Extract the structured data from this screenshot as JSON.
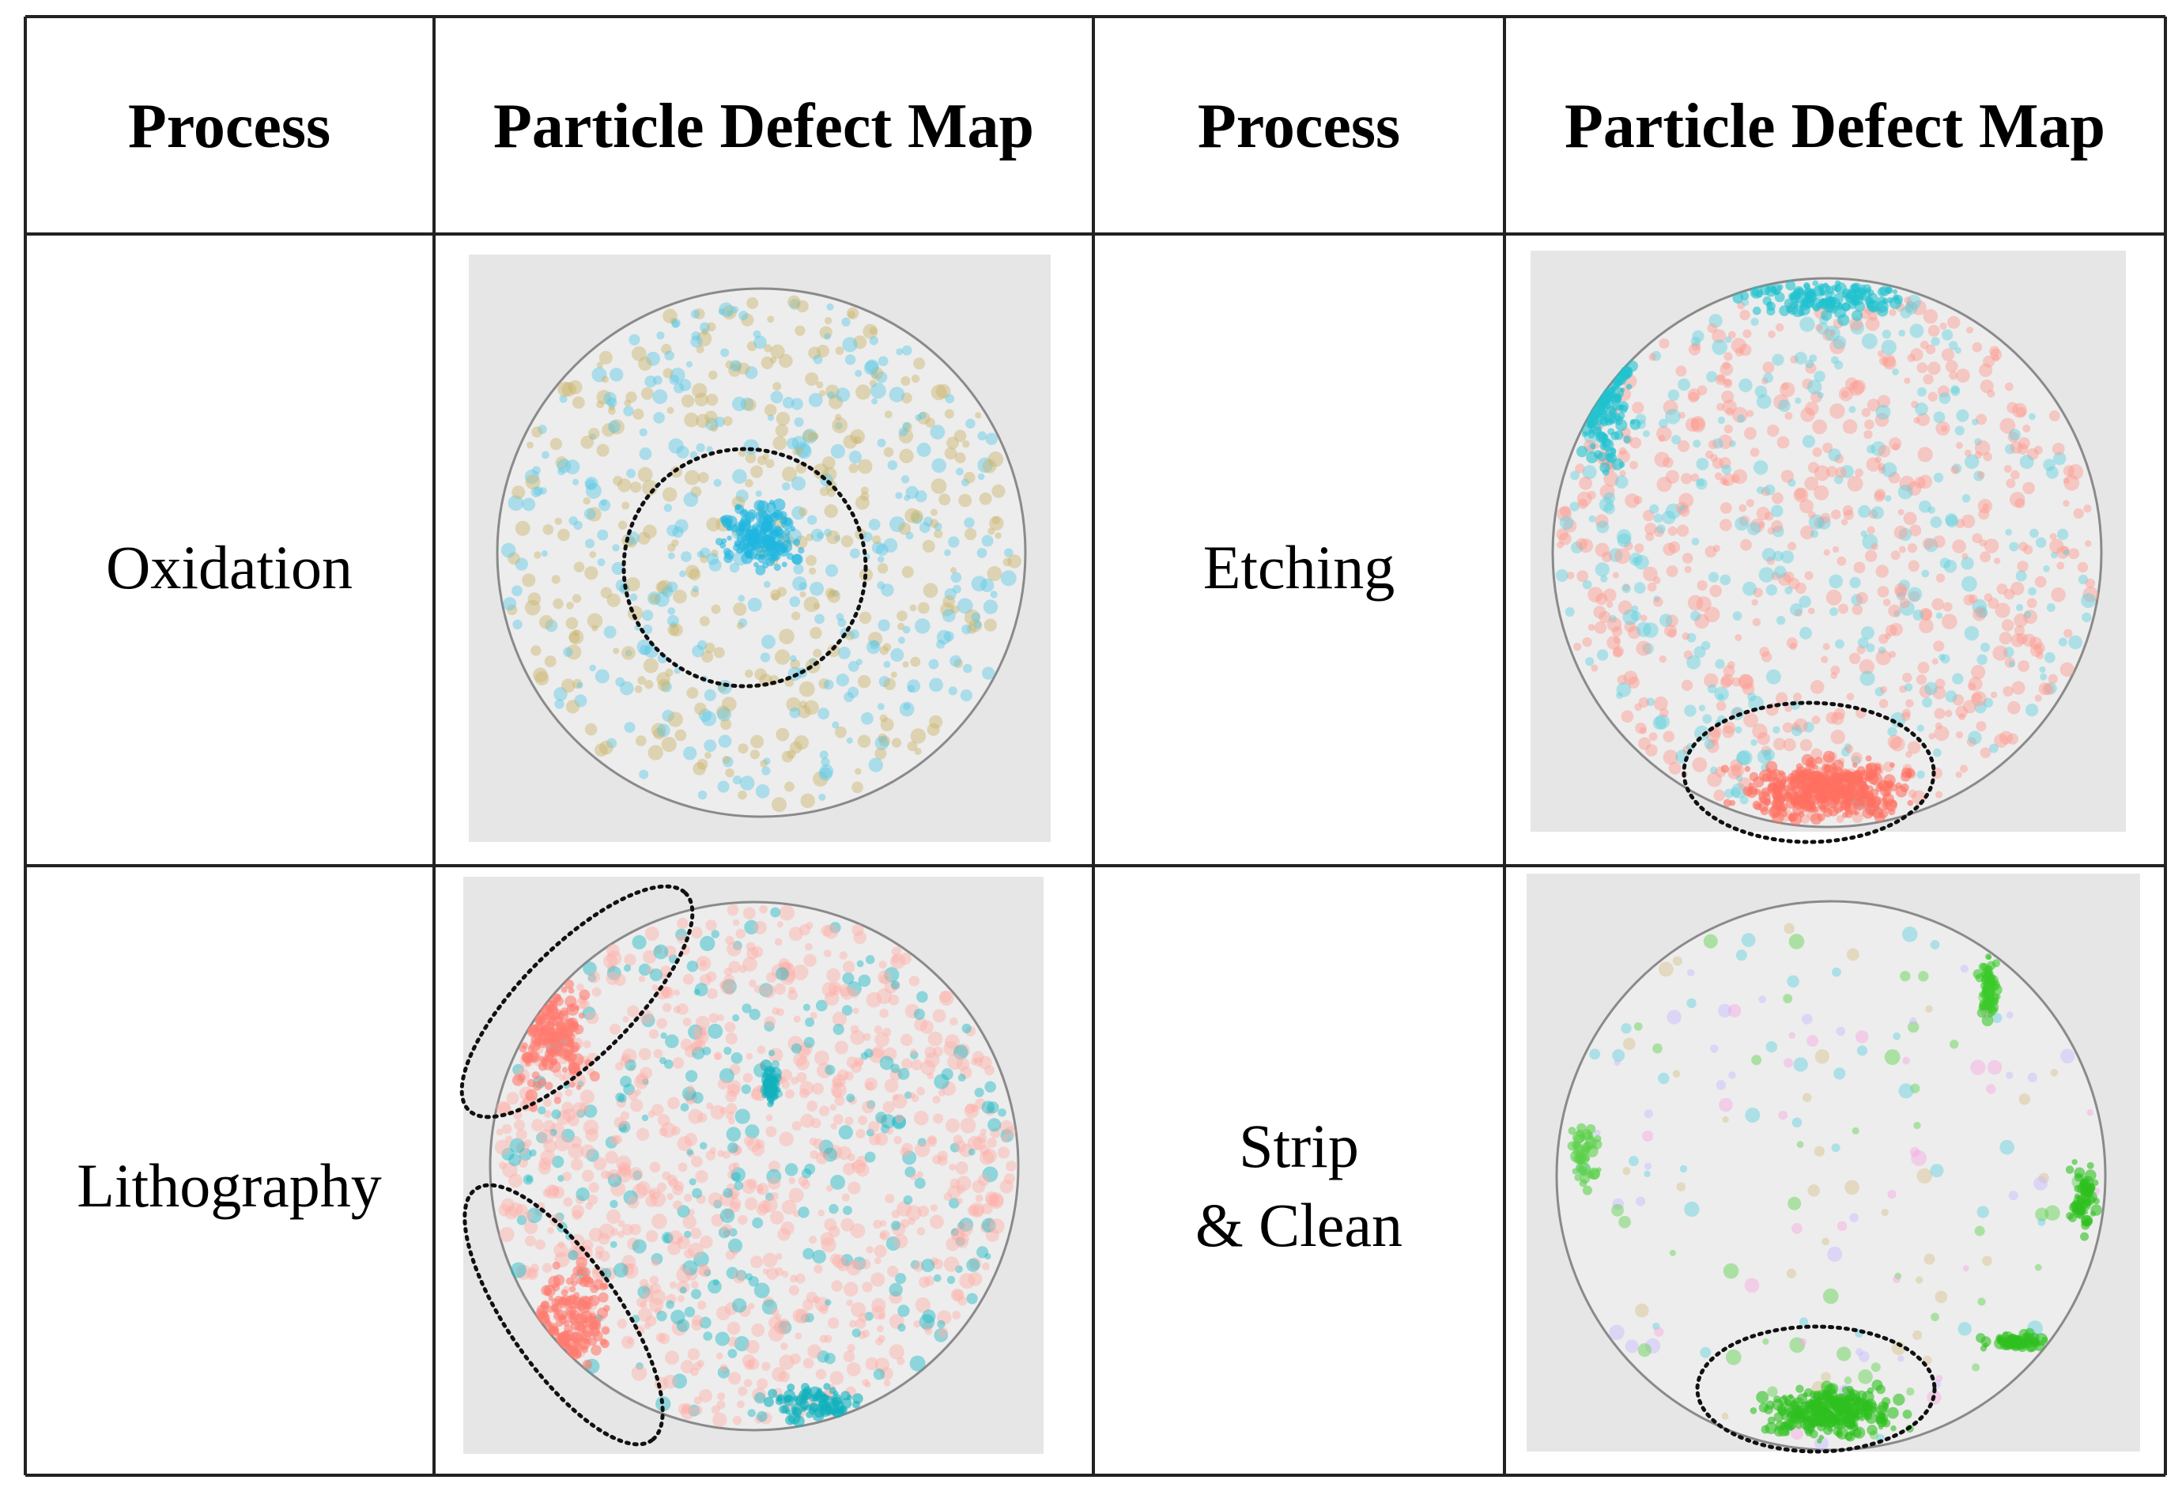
{
  "table": {
    "header": [
      "Process",
      "Particle Defect Map",
      "Process",
      "Particle Defect Map"
    ],
    "rows": [
      [
        [
          "Oxidation"
        ],
        [
          "Etching"
        ]
      ],
      [
        [
          "Lithography"
        ],
        [
          "Strip",
          "& Clean"
        ]
      ]
    ]
  }
}
